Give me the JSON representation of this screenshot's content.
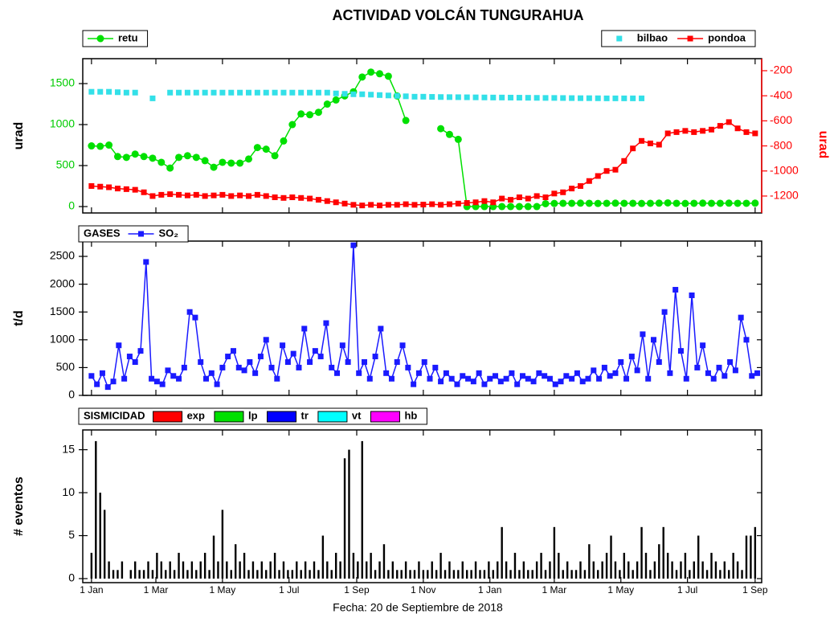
{
  "title": "ACTIVIDAD VOLCÁN TUNGURAHUA",
  "footer": "Fecha: 20 de Septiembre de 2018",
  "chart_data": [
    {
      "type": "line",
      "ylabel": "urad",
      "y2label": "urad",
      "ycolor": "#00cc00",
      "y2color": "#ff0000",
      "xlim": [
        -8,
        614
      ],
      "ylim": [
        -78,
        1804
      ],
      "yticks": [
        0,
        500,
        1000,
        1500
      ],
      "y2lim": [
        -1335,
        -104
      ],
      "y2ticks": [
        -1200,
        -1000,
        -800,
        -600,
        -400,
        -200
      ],
      "x": [
        0,
        8,
        16,
        24,
        32,
        40,
        48,
        56,
        64,
        72,
        80,
        88,
        96,
        104,
        112,
        120,
        128,
        136,
        144,
        152,
        160,
        168,
        176,
        184,
        192,
        200,
        208,
        216,
        224,
        232,
        240,
        248,
        256,
        264,
        272,
        280,
        288,
        296,
        304,
        312,
        320,
        328,
        336,
        344,
        352,
        360,
        368,
        376,
        384,
        392,
        400,
        408,
        416,
        424,
        432,
        440,
        448,
        456,
        464,
        472,
        480,
        488,
        496,
        504,
        512,
        520,
        528,
        536,
        544,
        552,
        560,
        568,
        576,
        584,
        592,
        600,
        608
      ],
      "series": [
        {
          "name": "retu",
          "color": "#00e000",
          "marker": "circle",
          "line": true,
          "legend": "upper left",
          "values": [
            740,
            735,
            750,
            610,
            600,
            640,
            610,
            590,
            540,
            470,
            600,
            620,
            600,
            560,
            480,
            540,
            530,
            530,
            580,
            720,
            700,
            620,
            800,
            1000,
            1130,
            1120,
            1150,
            1250,
            1300,
            1350,
            1400,
            1580,
            1640,
            1620,
            1590,
            1350,
            1050,
            null,
            null,
            null,
            950,
            880,
            820,
            0,
            0,
            0,
            0,
            0,
            0,
            0,
            0,
            0,
            35,
            38,
            40,
            40,
            42,
            40,
            38,
            40,
            42,
            40,
            40,
            38,
            40,
            42,
            45,
            40,
            38,
            40,
            42,
            40,
            40,
            42,
            40,
            40,
            42
          ]
        },
        {
          "name": "bilbao",
          "color": "#33e0e8",
          "marker": "square",
          "line": false,
          "legend": "upper right",
          "values": [
            1400,
            1400,
            1400,
            1395,
            1390,
            1390,
            null,
            1320,
            null,
            1390,
            1390,
            1390,
            1390,
            1390,
            1390,
            1390,
            1390,
            1390,
            1390,
            1390,
            1390,
            1390,
            1390,
            1390,
            1390,
            1390,
            1390,
            1390,
            1380,
            1375,
            1370,
            1370,
            1365,
            1360,
            1355,
            1350,
            1345,
            1340,
            1340,
            1338,
            1336,
            1335,
            1334,
            1333,
            1332,
            1331,
            1330,
            1330,
            1329,
            1328,
            1327,
            1326,
            1325,
            1325,
            1324,
            1323,
            1322,
            1322,
            1321,
            1320,
            1320,
            1320,
            1320,
            1320,
            null,
            null,
            null,
            null,
            null,
            null,
            null,
            null,
            null,
            null,
            null,
            null,
            null
          ]
        },
        {
          "name": "pondoa",
          "color": "#ff0000",
          "marker": "square",
          "line": true,
          "legend": "upper right",
          "axis": "y2",
          "values": [
            -1120,
            -1125,
            -1130,
            -1140,
            -1145,
            -1150,
            -1170,
            -1200,
            -1190,
            -1185,
            -1190,
            -1195,
            -1190,
            -1200,
            -1195,
            -1190,
            -1200,
            -1195,
            -1200,
            -1190,
            -1200,
            -1210,
            -1215,
            -1210,
            -1215,
            -1220,
            -1230,
            -1240,
            -1250,
            -1260,
            -1270,
            -1275,
            -1270,
            -1275,
            -1270,
            -1270,
            -1265,
            -1270,
            -1268,
            -1265,
            -1270,
            -1265,
            -1260,
            -1255,
            -1250,
            -1240,
            -1250,
            -1220,
            -1230,
            -1210,
            -1220,
            -1200,
            -1210,
            -1180,
            -1170,
            -1140,
            -1120,
            -1080,
            -1040,
            -1000,
            -990,
            -920,
            -820,
            -760,
            -780,
            -790,
            -700,
            -690,
            -680,
            -690,
            -680,
            -670,
            -640,
            -610,
            -660,
            -690,
            -700
          ]
        }
      ]
    },
    {
      "type": "line",
      "ylabel": "t/d",
      "legend_title": "GASES",
      "xlim": [
        -8,
        614
      ],
      "ylim": [
        0,
        2775
      ],
      "yticks": [
        0,
        500,
        1000,
        1500,
        2000,
        2500
      ],
      "x": [
        0,
        5,
        10,
        15,
        20,
        25,
        30,
        35,
        40,
        45,
        50,
        55,
        60,
        65,
        70,
        75,
        80,
        85,
        90,
        95,
        100,
        105,
        110,
        115,
        120,
        125,
        130,
        135,
        140,
        145,
        150,
        155,
        160,
        165,
        170,
        175,
        180,
        185,
        190,
        195,
        200,
        205,
        210,
        215,
        220,
        225,
        230,
        235,
        240,
        245,
        250,
        255,
        260,
        265,
        270,
        275,
        280,
        285,
        290,
        295,
        300,
        305,
        310,
        315,
        320,
        325,
        330,
        335,
        340,
        345,
        350,
        355,
        360,
        365,
        370,
        375,
        380,
        385,
        390,
        395,
        400,
        405,
        410,
        415,
        420,
        425,
        430,
        435,
        440,
        445,
        450,
        455,
        460,
        465,
        470,
        475,
        480,
        485,
        490,
        495,
        500,
        505,
        510,
        515,
        520,
        525,
        530,
        535,
        540,
        545,
        550,
        555,
        560,
        565,
        570,
        575,
        580,
        585,
        590,
        595,
        600,
        605,
        610
      ],
      "series": [
        {
          "name": "SO₂",
          "color": "#1a1aff",
          "marker": "square",
          "line": true,
          "values": [
            350,
            200,
            400,
            150,
            250,
            900,
            300,
            700,
            600,
            800,
            2400,
            300,
            250,
            200,
            450,
            350,
            300,
            500,
            1500,
            1400,
            600,
            300,
            400,
            200,
            500,
            700,
            800,
            500,
            450,
            600,
            400,
            700,
            1000,
            500,
            300,
            900,
            600,
            750,
            500,
            1200,
            600,
            800,
            700,
            1300,
            500,
            400,
            900,
            600,
            2700,
            400,
            600,
            300,
            700,
            1200,
            400,
            300,
            600,
            900,
            500,
            200,
            400,
            600,
            300,
            500,
            250,
            400,
            300,
            200,
            350,
            300,
            250,
            400,
            200,
            300,
            350,
            250,
            300,
            400,
            200,
            350,
            300,
            250,
            400,
            350,
            300,
            200,
            250,
            350,
            300,
            400,
            250,
            300,
            450,
            300,
            500,
            350,
            400,
            600,
            300,
            700,
            450,
            1100,
            300,
            1000,
            600,
            1500,
            400,
            1900,
            800,
            300,
            1800,
            500,
            900,
            400,
            300,
            500,
            350,
            600,
            450,
            1400,
            1000,
            350,
            400
          ]
        }
      ]
    },
    {
      "type": "bar",
      "ylabel": "# eventos",
      "legend_title": "SISMICIDAD",
      "color": "#000000",
      "xlim": [
        -8,
        614
      ],
      "ylim": [
        -0.47,
        17.3
      ],
      "yticks": [
        0,
        5,
        10,
        15
      ],
      "xticks": [
        {
          "value": 0,
          "label": "1 Jan"
        },
        {
          "value": 59,
          "label": "1 Mar"
        },
        {
          "value": 120,
          "label": "1 May"
        },
        {
          "value": 181,
          "label": "1 Jul"
        },
        {
          "value": 243,
          "label": "1 Sep"
        },
        {
          "value": 304,
          "label": "1 Nov"
        },
        {
          "value": 365,
          "label": "1 Jan"
        },
        {
          "value": 424,
          "label": "1 Mar"
        },
        {
          "value": 485,
          "label": "1 May"
        },
        {
          "value": 546,
          "label": "1 Jul"
        },
        {
          "value": 608,
          "label": "1 Sep"
        }
      ],
      "legend": [
        {
          "name": "exp",
          "color": "#ff0000"
        },
        {
          "name": "lp",
          "color": "#00e000"
        },
        {
          "name": "tr",
          "color": "#0000ff"
        },
        {
          "name": "vt",
          "color": "#00ffff"
        },
        {
          "name": "hb",
          "color": "#ff00ff"
        }
      ],
      "x": [
        0,
        4,
        8,
        12,
        16,
        20,
        24,
        28,
        32,
        36,
        40,
        44,
        48,
        52,
        56,
        60,
        64,
        68,
        72,
        76,
        80,
        84,
        88,
        92,
        96,
        100,
        104,
        108,
        112,
        116,
        120,
        124,
        128,
        132,
        136,
        140,
        144,
        148,
        152,
        156,
        160,
        164,
        168,
        172,
        176,
        180,
        184,
        188,
        192,
        196,
        200,
        204,
        208,
        212,
        216,
        220,
        224,
        228,
        232,
        236,
        240,
        244,
        248,
        252,
        256,
        260,
        264,
        268,
        272,
        276,
        280,
        284,
        288,
        292,
        296,
        300,
        304,
        308,
        312,
        316,
        320,
        324,
        328,
        332,
        336,
        340,
        344,
        348,
        352,
        356,
        360,
        364,
        368,
        372,
        376,
        380,
        384,
        388,
        392,
        396,
        400,
        404,
        408,
        412,
        416,
        420,
        424,
        428,
        432,
        436,
        440,
        444,
        448,
        452,
        456,
        460,
        464,
        468,
        472,
        476,
        480,
        484,
        488,
        492,
        496,
        500,
        504,
        508,
        512,
        516,
        520,
        524,
        528,
        532,
        536,
        540,
        544,
        548,
        552,
        556,
        560,
        564,
        568,
        572,
        576,
        580,
        584,
        588,
        592,
        596,
        600,
        604,
        608
      ],
      "values": [
        3,
        16,
        10,
        8,
        2,
        1,
        1,
        2,
        0,
        1,
        2,
        1,
        1,
        2,
        1,
        3,
        2,
        1,
        2,
        1,
        3,
        2,
        1,
        2,
        1,
        2,
        3,
        1,
        5,
        2,
        8,
        2,
        1,
        4,
        2,
        3,
        1,
        2,
        1,
        2,
        1,
        2,
        3,
        1,
        2,
        1,
        1,
        2,
        1,
        2,
        1,
        2,
        1,
        5,
        2,
        1,
        3,
        2,
        14,
        15,
        3,
        2,
        16,
        2,
        3,
        1,
        2,
        4,
        1,
        2,
        1,
        1,
        2,
        1,
        1,
        2,
        1,
        1,
        2,
        1,
        3,
        1,
        2,
        1,
        1,
        2,
        1,
        1,
        2,
        1,
        1,
        2,
        1,
        2,
        6,
        2,
        1,
        3,
        1,
        2,
        1,
        1,
        2,
        3,
        1,
        2,
        6,
        3,
        1,
        2,
        1,
        1,
        2,
        1,
        4,
        2,
        1,
        2,
        3,
        5,
        2,
        1,
        3,
        2,
        1,
        2,
        6,
        3,
        1,
        2,
        4,
        6,
        3,
        2,
        1,
        2,
        3,
        1,
        2,
        5,
        2,
        1,
        3,
        2,
        1,
        2,
        1,
        3,
        2,
        1,
        5,
        5,
        6
      ]
    }
  ]
}
